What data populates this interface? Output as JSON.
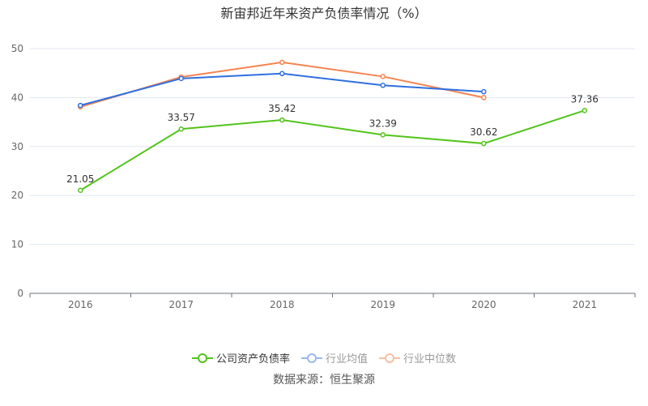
{
  "chart_data": {
    "type": "line",
    "title": "新宙邦近年来资产负债率情况（%）",
    "categories": [
      "2016",
      "2017",
      "2018",
      "2019",
      "2020",
      "2021"
    ],
    "ylim": [
      0,
      50
    ],
    "yticks": [
      0,
      10,
      20,
      30,
      40,
      50
    ],
    "grid": true,
    "legend_position": "bottom",
    "series": [
      {
        "name": "公司资产负债率",
        "color": "#52c41a",
        "values": [
          21.05,
          33.57,
          35.42,
          32.39,
          30.62,
          37.36
        ],
        "labels": [
          "21.05",
          "33.57",
          "35.42",
          "32.39",
          "30.62",
          "37.36"
        ]
      },
      {
        "name": "行业均值",
        "color": "#2f6fe0",
        "values": [
          38.4,
          43.9,
          44.9,
          42.5,
          41.2,
          null
        ]
      },
      {
        "name": "行业中位数",
        "color": "#f5844f",
        "values": [
          38.1,
          44.2,
          47.2,
          44.3,
          40.0,
          null
        ]
      }
    ]
  },
  "source": "数据来源：恒生聚源"
}
